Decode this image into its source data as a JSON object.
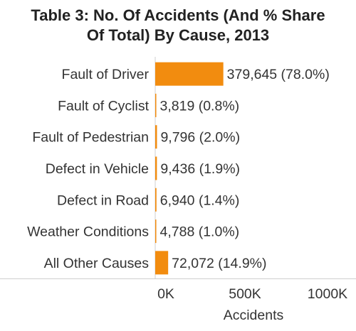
{
  "chart_data": {
    "type": "bar",
    "orientation": "horizontal",
    "title_line1": "Table 3: No. Of Accidents (And % Share",
    "title_line2": "Of Total) By Cause, 2013",
    "categories": [
      "Fault of Driver",
      "Fault of Cyclist",
      "Fault of Pedestrian",
      "Defect in Vehicle",
      "Defect in Road",
      "Weather Conditions",
      "All Other Causes"
    ],
    "values": [
      379645,
      3819,
      9796,
      9436,
      6940,
      4788,
      72072
    ],
    "data_labels": [
      "379,645 (78.0%)",
      "3,819 (0.8%)",
      "9,796 (2.0%)",
      "9,436 (1.9%)",
      "6,940 (1.4%)",
      "4,788 (1.0%)",
      "72,072 (14.9%)"
    ],
    "xlabel": "Accidents",
    "ylabel": "",
    "xlim": [
      0,
      1000000
    ],
    "x_ticks": [
      0,
      500000,
      1000000
    ],
    "x_tick_labels": [
      "0K",
      "500K",
      "1000K"
    ],
    "bar_color": "#f28c0f",
    "grid": false,
    "legend": "none"
  }
}
